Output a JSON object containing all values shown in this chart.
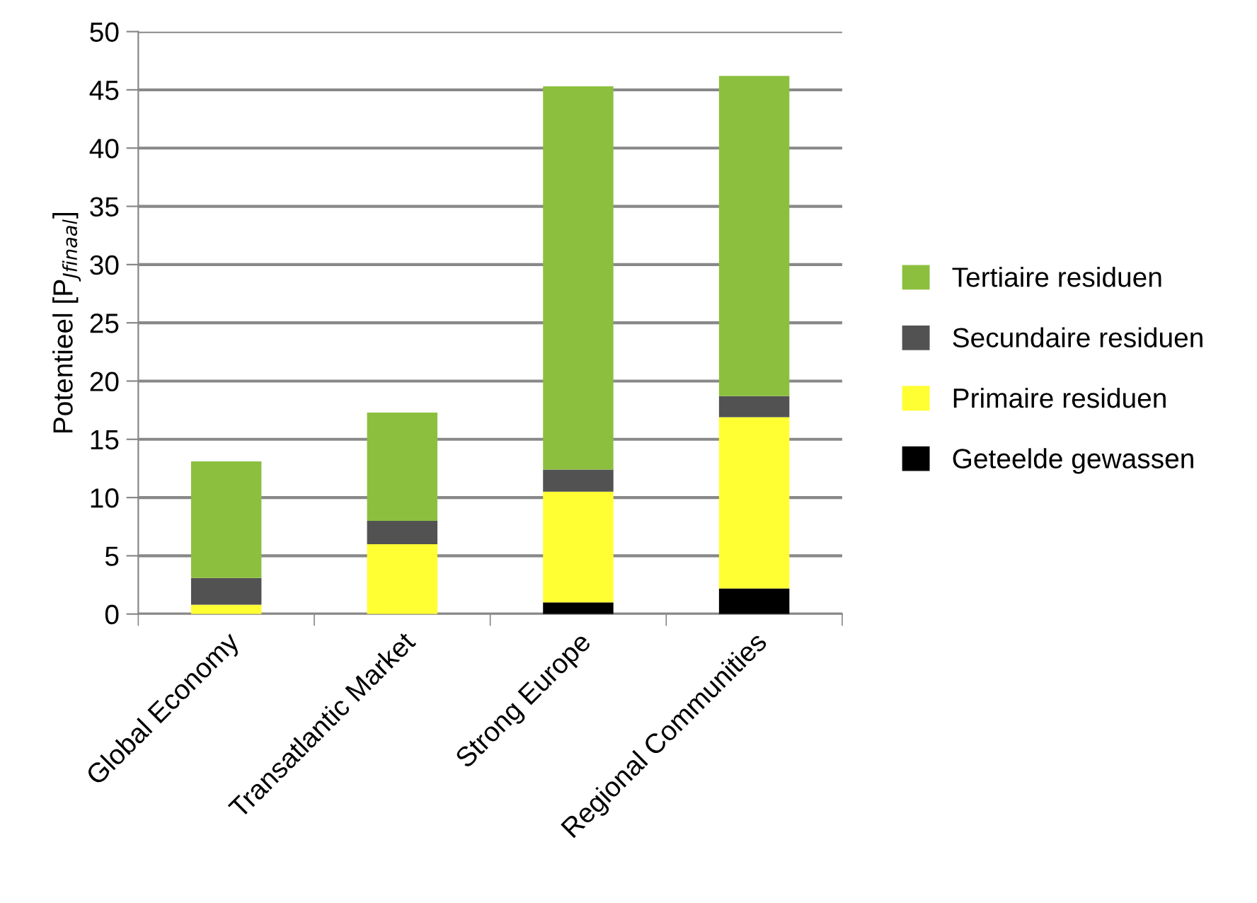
{
  "chart_data": {
    "type": "bar",
    "stacked": true,
    "ylabel": "Potentieel [P$_{Jfinaal}$]",
    "categories": [
      "Global Economy",
      "Transatlantic Market",
      "Strong Europe",
      "Regional Communities"
    ],
    "series": [
      {
        "name": "Geteelde gewassen",
        "color": "#000000",
        "values": [
          0,
          0,
          1.0,
          2.2
        ]
      },
      {
        "name": "Primaire residuen",
        "color": "#ffff33",
        "values": [
          0.8,
          6.0,
          9.5,
          14.7
        ]
      },
      {
        "name": "Secundaire residuen",
        "color": "#525252",
        "values": [
          2.3,
          2.0,
          1.9,
          1.8
        ]
      },
      {
        "name": "Tertiaire residuen",
        "color": "#8dbf3f",
        "values": [
          10.0,
          9.3,
          32.9,
          27.5
        ]
      }
    ],
    "ylim": [
      0,
      50
    ],
    "yticks": [
      0,
      5,
      10,
      15,
      20,
      25,
      30,
      35,
      40,
      45,
      50
    ],
    "grid": "y",
    "legend": "right"
  }
}
